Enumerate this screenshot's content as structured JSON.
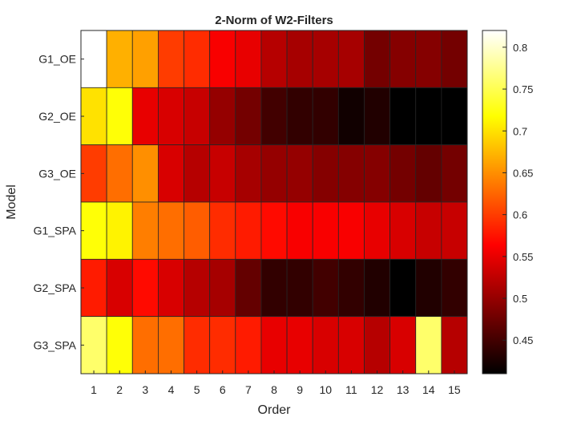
{
  "chart_data": {
    "type": "heatmap",
    "title": "2-Norm of W2-Filters",
    "xlabel": "Order",
    "ylabel": "Model",
    "x_categories": [
      "1",
      "2",
      "3",
      "4",
      "5",
      "6",
      "7",
      "8",
      "9",
      "10",
      "11",
      "12",
      "13",
      "14",
      "15"
    ],
    "y_categories": [
      "G1_OE",
      "G2_OE",
      "G3_OE",
      "G1_SPA",
      "G2_SPA",
      "G3_SPA"
    ],
    "values": [
      [
        0.82,
        0.67,
        0.66,
        0.6,
        0.59,
        0.56,
        0.55,
        0.52,
        0.51,
        0.51,
        0.51,
        0.48,
        0.49,
        0.49,
        0.48
      ],
      [
        0.7,
        0.72,
        0.55,
        0.54,
        0.53,
        0.5,
        0.48,
        0.45,
        0.44,
        0.44,
        0.42,
        0.43,
        0.41,
        0.41,
        0.41
      ],
      [
        0.6,
        0.63,
        0.65,
        0.54,
        0.52,
        0.53,
        0.51,
        0.5,
        0.5,
        0.49,
        0.49,
        0.49,
        0.48,
        0.47,
        0.48
      ],
      [
        0.72,
        0.71,
        0.64,
        0.63,
        0.62,
        0.59,
        0.58,
        0.57,
        0.56,
        0.56,
        0.56,
        0.55,
        0.54,
        0.53,
        0.53
      ],
      [
        0.58,
        0.54,
        0.57,
        0.54,
        0.52,
        0.51,
        0.47,
        0.44,
        0.44,
        0.45,
        0.44,
        0.43,
        0.4,
        0.43,
        0.44
      ],
      [
        0.76,
        0.72,
        0.63,
        0.63,
        0.59,
        0.59,
        0.58,
        0.55,
        0.55,
        0.54,
        0.54,
        0.52,
        0.54,
        0.76,
        0.52
      ]
    ],
    "colorbar": {
      "min": 0.41,
      "max": 0.82,
      "ticks": [
        0.45,
        0.5,
        0.55,
        0.6,
        0.65,
        0.7,
        0.75,
        0.8
      ],
      "tick_labels": [
        "0.45",
        "0.5",
        "0.55",
        "0.6",
        "0.65",
        "0.7",
        "0.75",
        "0.8"
      ],
      "colormap": "hot"
    },
    "grid": false,
    "legend": "colorbar-right"
  }
}
